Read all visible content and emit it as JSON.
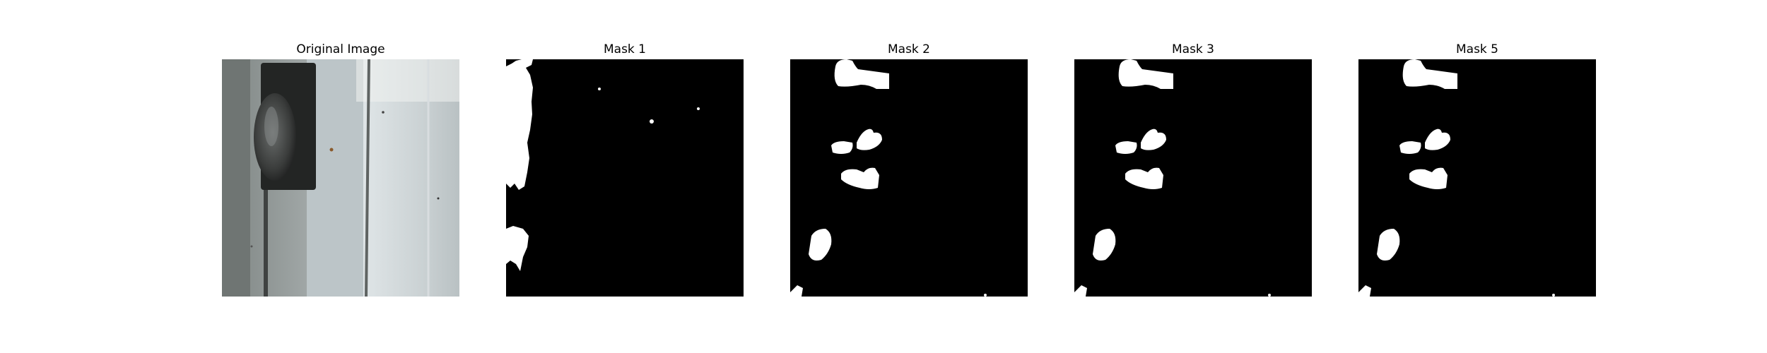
{
  "panels": [
    {
      "title": "Original Image",
      "kind": "photo"
    },
    {
      "title": "Mask 1",
      "kind": "mask-a"
    },
    {
      "title": "Mask 2",
      "kind": "mask-b"
    },
    {
      "title": "Mask 3",
      "kind": "mask-b"
    },
    {
      "title": "Mask 5",
      "kind": "mask-b"
    }
  ],
  "colors": {
    "mask_background": "#000000",
    "mask_foreground": "#ffffff"
  }
}
